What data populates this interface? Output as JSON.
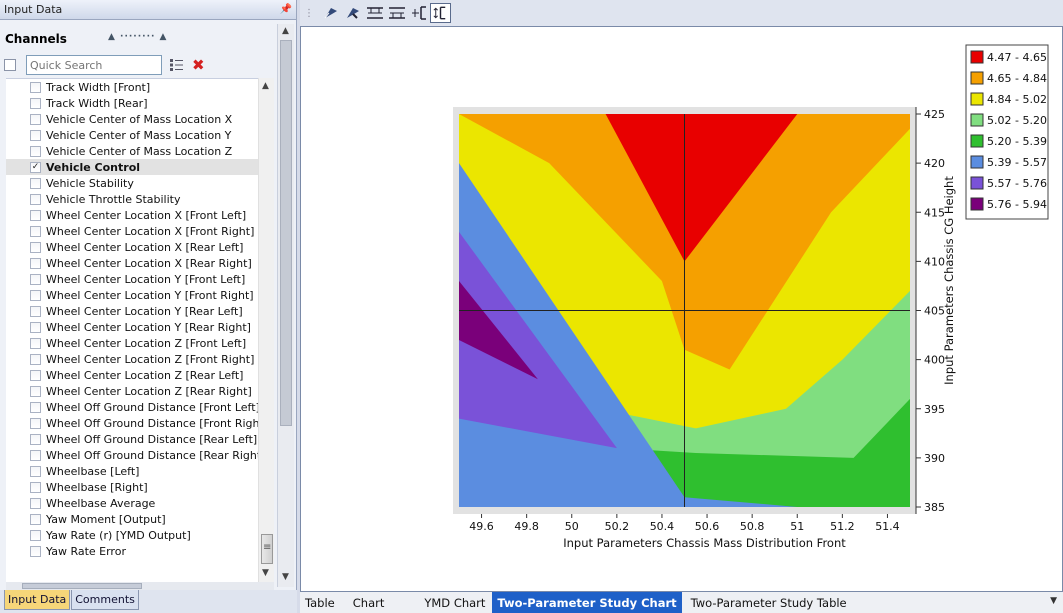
{
  "panel": {
    "title": "Input Data"
  },
  "channels": {
    "title": "Channels",
    "search": {
      "placeholder": "Quick Search",
      "value": ""
    },
    "items": [
      {
        "label": "Track Width [Front]",
        "checked": false
      },
      {
        "label": "Track Width [Rear]",
        "checked": false
      },
      {
        "label": "Vehicle Center of Mass Location X",
        "checked": false
      },
      {
        "label": "Vehicle Center of Mass Location Y",
        "checked": false
      },
      {
        "label": "Vehicle Center of Mass Location Z",
        "checked": false
      },
      {
        "label": "Vehicle Control",
        "checked": true,
        "selected": true
      },
      {
        "label": "Vehicle Stability",
        "checked": false
      },
      {
        "label": "Vehicle Throttle Stability",
        "checked": false
      },
      {
        "label": "Wheel Center Location X [Front Left]",
        "checked": false
      },
      {
        "label": "Wheel Center Location X [Front Right]",
        "checked": false
      },
      {
        "label": "Wheel Center Location X [Rear Left]",
        "checked": false
      },
      {
        "label": "Wheel Center Location X [Rear Right]",
        "checked": false
      },
      {
        "label": "Wheel Center Location Y [Front Left]",
        "checked": false
      },
      {
        "label": "Wheel Center Location Y [Front Right]",
        "checked": false
      },
      {
        "label": "Wheel Center Location Y [Rear Left]",
        "checked": false
      },
      {
        "label": "Wheel Center Location Y [Rear Right]",
        "checked": false
      },
      {
        "label": "Wheel Center Location Z [Front Left]",
        "checked": false
      },
      {
        "label": "Wheel Center Location Z [Front Right]",
        "checked": false
      },
      {
        "label": "Wheel Center Location Z [Rear Left]",
        "checked": false
      },
      {
        "label": "Wheel Center Location Z [Rear Right]",
        "checked": false
      },
      {
        "label": "Wheel Off Ground Distance [Front Left]",
        "checked": false
      },
      {
        "label": "Wheel Off Ground Distance [Front Right]",
        "checked": false
      },
      {
        "label": "Wheel Off Ground Distance [Rear Left]",
        "checked": false
      },
      {
        "label": "Wheel Off Ground Distance [Rear Right]",
        "checked": false
      },
      {
        "label": "Wheelbase [Left]",
        "checked": false
      },
      {
        "label": "Wheelbase [Right]",
        "checked": false
      },
      {
        "label": "Wheelbase Average",
        "checked": false
      },
      {
        "label": "Yaw Moment [Output]",
        "checked": false
      },
      {
        "label": "Yaw Rate (r) [YMD Output]",
        "checked": false
      },
      {
        "label": "Yaw Rate Error",
        "checked": false
      }
    ]
  },
  "panel_tabs": [
    {
      "label": "Input Data",
      "active": true
    },
    {
      "label": "Comments",
      "active": false
    }
  ],
  "view_tabs": [
    {
      "label": "Table",
      "active": false
    },
    {
      "label": "Chart",
      "active": false
    },
    {
      "label": "YMD Chart",
      "active": false
    },
    {
      "label": "Two-Parameter Study Chart",
      "active": true
    },
    {
      "label": "Two-Parameter Study Table",
      "active": false
    }
  ],
  "toolbar_icons": [
    "pan-icon",
    "zoom-icon",
    "fit-width-icon",
    "fit-height-icon",
    "zoom-x-icon",
    "zoom-y-icon"
  ],
  "chart_data": {
    "type": "contour",
    "xlabel": "Input Parameters Chassis Mass Distribution Front",
    "ylabel": "Input Parameters Chassis CG Height",
    "xlim": [
      49.5,
      51.5
    ],
    "ylim": [
      385,
      425
    ],
    "x_ticks": [
      49.6,
      49.8,
      50,
      50.2,
      50.4,
      50.6,
      50.8,
      51,
      51.2,
      51.4
    ],
    "y_ticks": [
      385,
      390,
      395,
      400,
      405,
      410,
      415,
      420,
      425
    ],
    "crosshair": {
      "x": 50.5,
      "y": 405
    },
    "legend_position": "top-right",
    "levels": [
      {
        "label": "4.47 - 4.65",
        "color": "#e80000"
      },
      {
        "label": "4.65 - 4.84",
        "color": "#f5a000"
      },
      {
        "label": "4.84 - 5.02",
        "color": "#ebe600"
      },
      {
        "label": "5.02 - 5.20",
        "color": "#80de80"
      },
      {
        "label": "5.20 - 5.39",
        "color": "#2fbf2f"
      },
      {
        "label": "5.39 - 5.57",
        "color": "#5b8de0"
      },
      {
        "label": "5.57 - 5.76",
        "color": "#7a52d8"
      },
      {
        "label": "5.76 - 5.94",
        "color": "#7a007a"
      }
    ],
    "regions": [
      {
        "level": 4,
        "points": [
          [
            49.5,
            425
          ],
          [
            51.5,
            425
          ],
          [
            51.5,
            385
          ],
          [
            49.5,
            385
          ]
        ]
      },
      {
        "level": 3,
        "points": [
          [
            49.5,
            425
          ],
          [
            51.5,
            425
          ],
          [
            51.5,
            396
          ],
          [
            51.25,
            390
          ],
          [
            50.55,
            390.5
          ],
          [
            49.85,
            391.5
          ],
          [
            49.5,
            392
          ]
        ]
      },
      {
        "level": 2,
        "points": [
          [
            49.5,
            425
          ],
          [
            51.5,
            425
          ],
          [
            51.5,
            407
          ],
          [
            51.2,
            400
          ],
          [
            50.95,
            395
          ],
          [
            50.55,
            393
          ],
          [
            49.9,
            396
          ],
          [
            49.5,
            406
          ]
        ]
      },
      {
        "level": 1,
        "points": [
          [
            49.5,
            425
          ],
          [
            51.5,
            425
          ],
          [
            51.5,
            423.5
          ],
          [
            51.15,
            415
          ],
          [
            50.7,
            399
          ],
          [
            50.5,
            401
          ],
          [
            50.4,
            408
          ],
          [
            49.9,
            420
          ],
          [
            49.5,
            425
          ]
        ]
      },
      {
        "level": 0,
        "points": [
          [
            50.15,
            425
          ],
          [
            51.0,
            425
          ],
          [
            50.5,
            410
          ]
        ]
      },
      {
        "level": 5,
        "points": [
          [
            49.5,
            420
          ],
          [
            50.5,
            386
          ],
          [
            51.0,
            385
          ],
          [
            49.5,
            385
          ]
        ]
      },
      {
        "level": 6,
        "points": [
          [
            49.5,
            413
          ],
          [
            50.2,
            391
          ],
          [
            49.5,
            394
          ]
        ]
      },
      {
        "level": 7,
        "points": [
          [
            49.5,
            408
          ],
          [
            49.85,
            398
          ],
          [
            49.5,
            402
          ]
        ]
      }
    ]
  }
}
